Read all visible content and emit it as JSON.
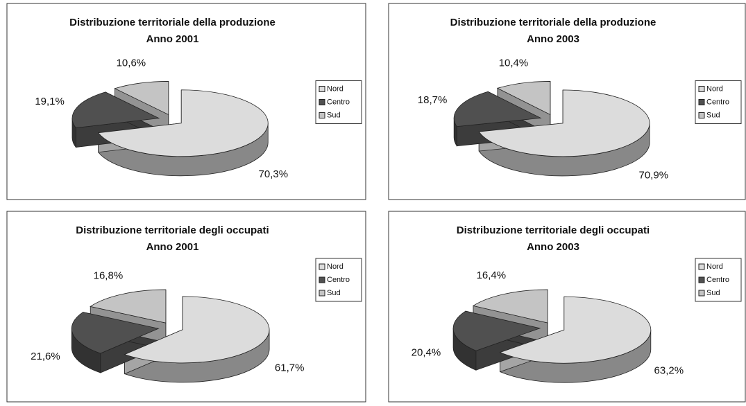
{
  "chart_data": [
    {
      "type": "pie",
      "title": "Distribuzione territoriale della produzione",
      "subtitle": "Anno 2001",
      "categories": [
        "Nord",
        "Centro",
        "Sud"
      ],
      "values": [
        70.3,
        19.1,
        10.6
      ],
      "value_labels": [
        "70,3%",
        "19,1%",
        "10,6%"
      ],
      "colors": [
        "#dcdcdc",
        "#505050",
        "#c4c4c4"
      ],
      "legend": "right"
    },
    {
      "type": "pie",
      "title": "Distribuzione territoriale della produzione",
      "subtitle": "Anno 2003",
      "categories": [
        "Nord",
        "Centro",
        "Sud"
      ],
      "values": [
        70.9,
        18.7,
        10.4
      ],
      "value_labels": [
        "70,9%",
        "18,7%",
        "10,4%"
      ],
      "colors": [
        "#dcdcdc",
        "#505050",
        "#c4c4c4"
      ],
      "legend": "right"
    },
    {
      "type": "pie",
      "title": "Distribuzione territoriale degli occupati",
      "subtitle": "Anno 2001",
      "categories": [
        "Nord",
        "Centro",
        "Sud"
      ],
      "values": [
        61.7,
        21.6,
        16.8
      ],
      "value_labels": [
        "61,7%",
        "21,6%",
        "16,8%"
      ],
      "colors": [
        "#dcdcdc",
        "#505050",
        "#c4c4c4"
      ],
      "legend": "top-right"
    },
    {
      "type": "pie",
      "title": "Distribuzione territoriale degli occupati",
      "subtitle": "Anno 2003",
      "categories": [
        "Nord",
        "Centro",
        "Sud"
      ],
      "values": [
        63.2,
        20.4,
        16.4
      ],
      "value_labels": [
        "63,2%",
        "20,4%",
        "16,4%"
      ],
      "colors": [
        "#dcdcdc",
        "#505050",
        "#c4c4c4"
      ],
      "legend": "top-right"
    }
  ]
}
